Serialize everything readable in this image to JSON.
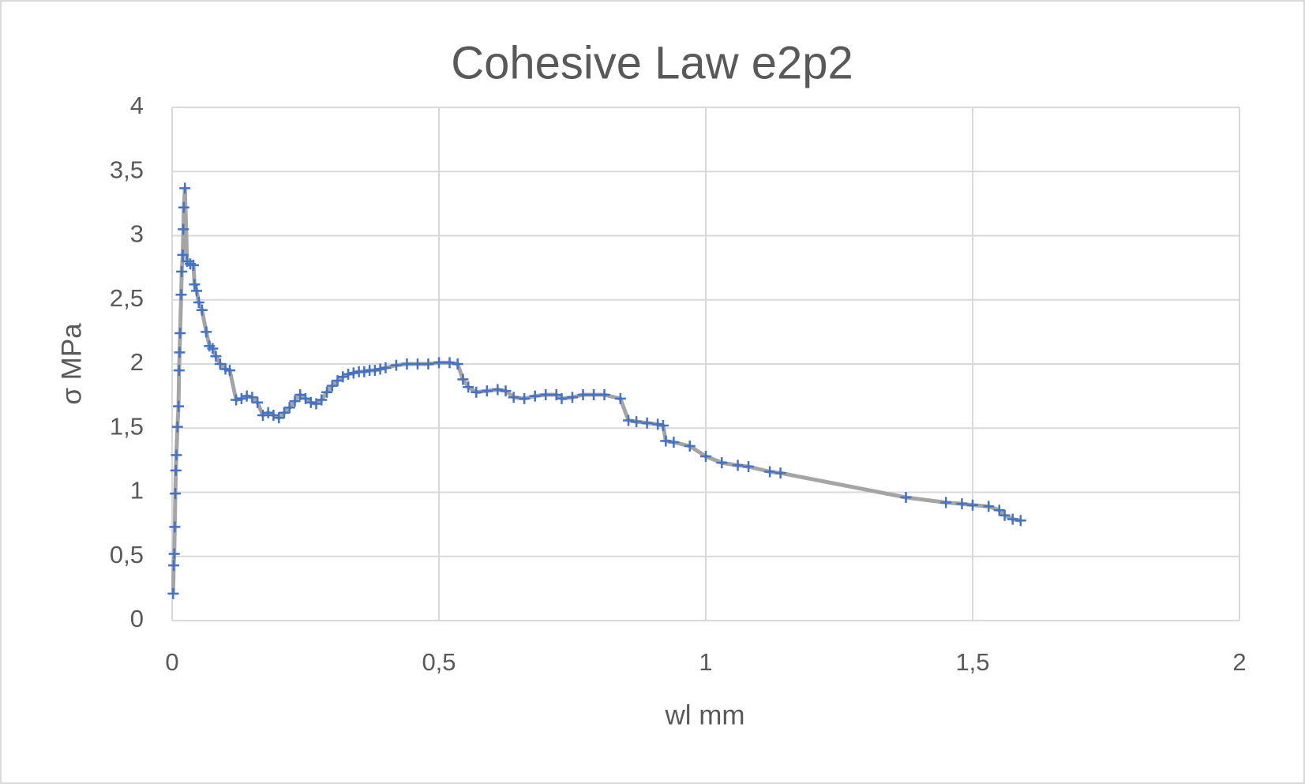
{
  "chart_data": {
    "type": "scatter",
    "title": "Cohesive Law e2p2",
    "x_label": "wl mm",
    "y_label": "σ MPa",
    "x": [
      0.002,
      0.003,
      0.004,
      0.005,
      0.006,
      0.007,
      0.008,
      0.01,
      0.012,
      0.013,
      0.014,
      0.015,
      0.017,
      0.018,
      0.02,
      0.021,
      0.022,
      0.024,
      0.028,
      0.034,
      0.04,
      0.042,
      0.046,
      0.05,
      0.056,
      0.064,
      0.07,
      0.076,
      0.082,
      0.09,
      0.1,
      0.108,
      0.12,
      0.13,
      0.14,
      0.15,
      0.16,
      0.17,
      0.18,
      0.19,
      0.2,
      0.21,
      0.22,
      0.23,
      0.24,
      0.25,
      0.26,
      0.27,
      0.28,
      0.29,
      0.3,
      0.31,
      0.32,
      0.33,
      0.34,
      0.35,
      0.36,
      0.37,
      0.38,
      0.39,
      0.4,
      0.42,
      0.44,
      0.46,
      0.48,
      0.5,
      0.52,
      0.535,
      0.545,
      0.555,
      0.57,
      0.59,
      0.61,
      0.625,
      0.64,
      0.66,
      0.68,
      0.7,
      0.72,
      0.73,
      0.75,
      0.77,
      0.79,
      0.81,
      0.84,
      0.855,
      0.87,
      0.89,
      0.91,
      0.92,
      0.925,
      0.94,
      0.97,
      1.0,
      1.03,
      1.06,
      1.08,
      1.12,
      1.14,
      1.375,
      1.45,
      1.48,
      1.5,
      1.53,
      1.55,
      1.56,
      1.575,
      1.59
    ],
    "values": [
      0.21,
      0.43,
      0.52,
      0.73,
      0.99,
      1.17,
      1.29,
      1.51,
      1.67,
      1.95,
      2.09,
      2.24,
      2.54,
      2.72,
      2.85,
      3.05,
      3.22,
      3.37,
      2.8,
      2.78,
      2.77,
      2.62,
      2.57,
      2.48,
      2.42,
      2.25,
      2.14,
      2.12,
      2.06,
      2.0,
      1.96,
      1.95,
      1.72,
      1.73,
      1.75,
      1.74,
      1.7,
      1.6,
      1.62,
      1.6,
      1.58,
      1.62,
      1.66,
      1.71,
      1.76,
      1.73,
      1.7,
      1.69,
      1.72,
      1.78,
      1.83,
      1.87,
      1.9,
      1.92,
      1.93,
      1.94,
      1.94,
      1.95,
      1.95,
      1.96,
      1.97,
      1.99,
      2.0,
      2.0,
      2.0,
      2.01,
      2.01,
      2.0,
      1.88,
      1.82,
      1.78,
      1.79,
      1.8,
      1.79,
      1.74,
      1.73,
      1.75,
      1.76,
      1.76,
      1.73,
      1.74,
      1.76,
      1.76,
      1.76,
      1.73,
      1.56,
      1.55,
      1.54,
      1.53,
      1.52,
      1.4,
      1.39,
      1.36,
      1.28,
      1.23,
      1.21,
      1.2,
      1.16,
      1.15,
      0.96,
      0.92,
      0.91,
      0.9,
      0.89,
      0.86,
      0.82,
      0.79,
      0.78
    ],
    "color": "#4472c4",
    "line_color": "#a5a5a5",
    "xlim": [
      0,
      2
    ],
    "xticks": [
      0,
      {
        "value": 0.5,
        "label": "0,5"
      },
      1,
      {
        "value": 1.5,
        "label": "1,5"
      },
      2
    ],
    "ylim": [
      0,
      4
    ],
    "yticks": [
      0,
      {
        "value": 0.5,
        "label": "0,5"
      },
      1,
      {
        "value": 1.5,
        "label": "1,5"
      },
      2,
      {
        "value": 2.5,
        "label": "2,5"
      },
      3,
      {
        "value": 3.5,
        "label": "3,5"
      },
      4
    ],
    "grid": true
  }
}
